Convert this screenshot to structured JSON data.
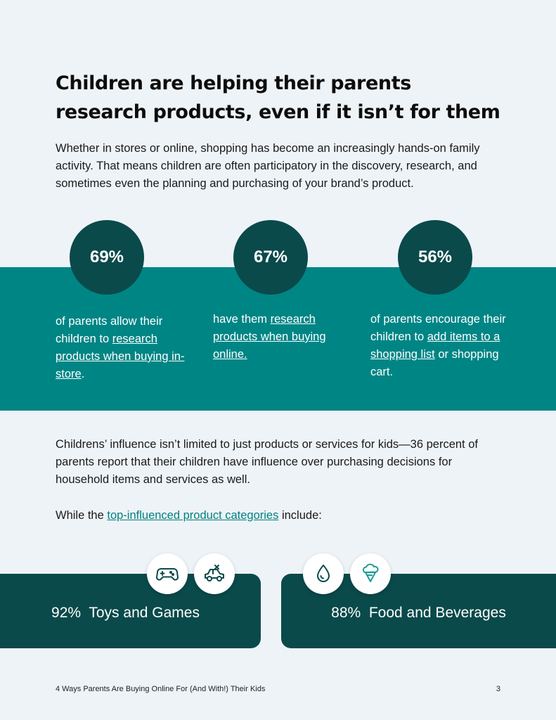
{
  "title": "Children are helping their parents research products, even if it isn’t for them",
  "intro": "Whether in stores or online, shopping has become an increasingly hands-on family activity. That means children are often participatory in the discovery, research, and sometimes even the planning and purchasing of your brand’s product.",
  "stats": [
    {
      "value": "69%",
      "pre": "of parents allow their children to ",
      "link": "research products when buying in-store",
      "post": "."
    },
    {
      "value": "67%",
      "pre": "have them ",
      "link": "research products when buying online.",
      "post": ""
    },
    {
      "value": "56%",
      "pre": "of parents encourage their children to ",
      "link": "add items to a shopping list",
      "post": " or shopping cart."
    }
  ],
  "influence_paragraph": "Childrens’ influence isn’t limited to just products or services for kids—36 percent of parents report that their children have influence over purchasing decisions for household items and services as well.",
  "categories_intro": {
    "pre": "While the ",
    "link": "top-influenced product categories",
    "post": " include:"
  },
  "categories": [
    {
      "percent": "92%",
      "label": "Toys and Games",
      "icons": [
        "game-controller-icon",
        "toy-car-icon"
      ]
    },
    {
      "percent": "88%",
      "label": "Food and Beverages",
      "icons": [
        "water-drop-icon",
        "ice-cream-icon"
      ]
    }
  ],
  "colors": {
    "teal": "#008585",
    "dark_teal": "#0a4a4b",
    "background": "#eef3f7"
  },
  "footer": {
    "text": "4 Ways Parents Are Buying Online For (And With!) Their Kids",
    "page_number": "3"
  }
}
